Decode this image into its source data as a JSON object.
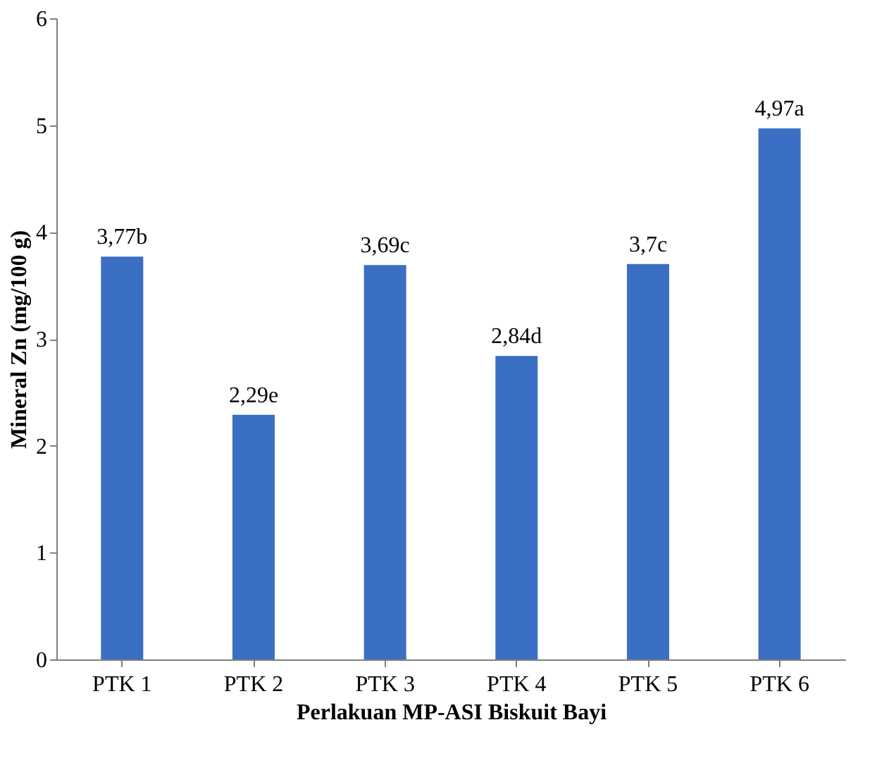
{
  "chart_data": {
    "type": "bar",
    "xlabel": "Perlakuan MP-ASI Biskuit Bayi",
    "ylabel": "Mineral Zn (mg/100 g)",
    "categories": [
      "PTK 1",
      "PTK 2",
      "PTK 3",
      "PTK 4",
      "PTK 5",
      "PTK 6"
    ],
    "values": [
      3.77,
      2.29,
      3.69,
      2.84,
      3.7,
      4.97
    ],
    "value_labels": [
      "3,77b",
      "2,29e",
      "3,69c",
      "2,84d",
      "3,7c",
      "4,97a"
    ],
    "color": "#3a6fc4",
    "ylim": [
      0,
      6
    ],
    "yticks": [
      0,
      1,
      2,
      3,
      4,
      5,
      6
    ],
    "grid": false
  }
}
